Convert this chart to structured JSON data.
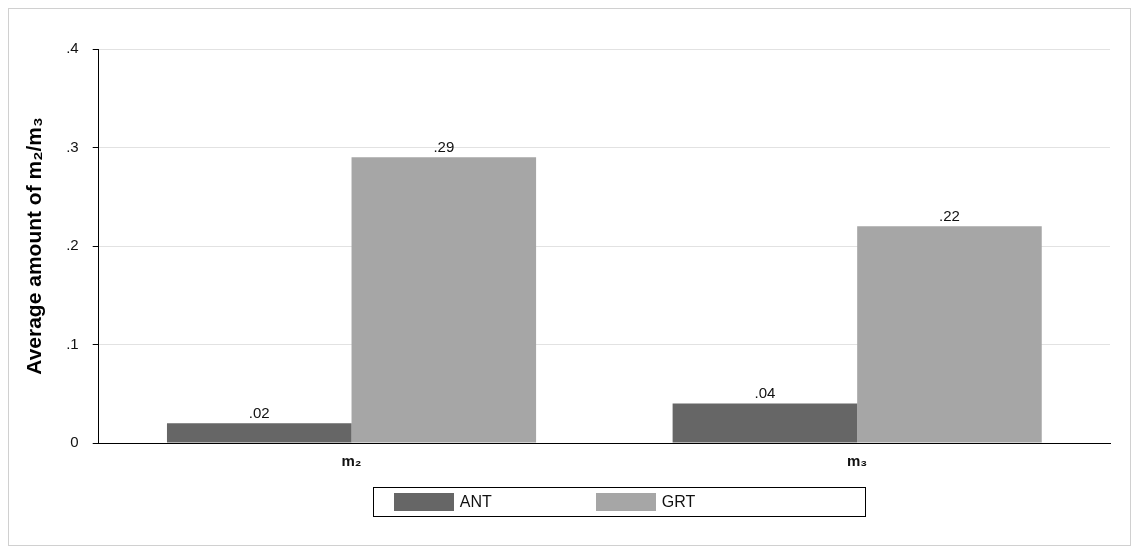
{
  "chart_data": {
    "type": "bar",
    "ylabel": "Average amount of m₂/m₃",
    "categories": [
      "m₂",
      "m₃"
    ],
    "series": [
      {
        "name": "ANT",
        "color": "#666666",
        "values": [
          0.02,
          0.04
        ],
        "value_labels": [
          ".02",
          ".04"
        ]
      },
      {
        "name": "GRT",
        "color": "#a6a6a6",
        "values": [
          0.29,
          0.22
        ],
        "value_labels": [
          ".29",
          ".22"
        ]
      }
    ],
    "ylim": [
      0,
      0.4
    ],
    "yticks": [
      {
        "value": 0,
        "label": "0"
      },
      {
        "value": 0.1,
        "label": ".1"
      },
      {
        "value": 0.2,
        "label": ".2"
      },
      {
        "value": 0.3,
        "label": ".3"
      },
      {
        "value": 0.4,
        "label": ".4"
      }
    ],
    "grid": "y",
    "legend": "bottom"
  }
}
